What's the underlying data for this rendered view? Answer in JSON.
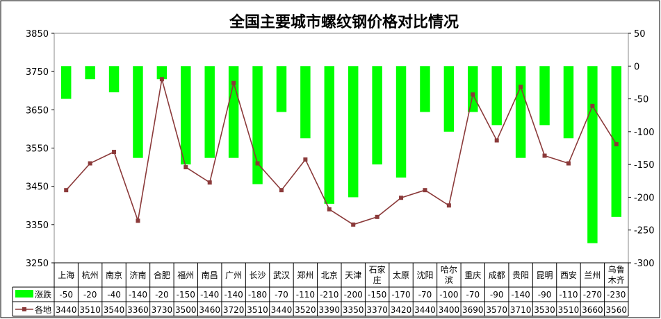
{
  "chart_data": {
    "type": "bar+line",
    "title": "全国主要城市螺纹钢价格对比情况",
    "categories": [
      [
        "上海"
      ],
      [
        "杭州"
      ],
      [
        "南京"
      ],
      [
        "济南"
      ],
      [
        "合肥"
      ],
      [
        "福州"
      ],
      [
        "南昌"
      ],
      [
        "广州"
      ],
      [
        "长沙"
      ],
      [
        "武汉"
      ],
      [
        "郑州"
      ],
      [
        "北京"
      ],
      [
        "天津"
      ],
      [
        "石家",
        "庄"
      ],
      [
        "太原"
      ],
      [
        "沈阳"
      ],
      [
        "哈尔",
        "滨"
      ],
      [
        "重庆"
      ],
      [
        "成都"
      ],
      [
        "贵阳"
      ],
      [
        "昆明"
      ],
      [
        "西安"
      ],
      [
        "兰州"
      ],
      [
        "乌鲁",
        "木齐"
      ]
    ],
    "series": [
      {
        "name": "涨跌",
        "kind": "bar",
        "axis": "right",
        "color": "#00ff00",
        "values": [
          -50,
          -20,
          -40,
          -140,
          -20,
          -150,
          -140,
          -140,
          -180,
          -70,
          -110,
          -210,
          -200,
          -150,
          -170,
          -70,
          -100,
          -70,
          -90,
          -140,
          -90,
          -110,
          -270,
          -230
        ]
      },
      {
        "name": "各地",
        "kind": "line",
        "axis": "left",
        "color": "#8b3a3a",
        "values": [
          3440,
          3510,
          3540,
          3360,
          3730,
          3500,
          3460,
          3720,
          3510,
          3440,
          3520,
          3390,
          3350,
          3370,
          3420,
          3440,
          3400,
          3690,
          3570,
          3710,
          3530,
          3510,
          3660,
          3560
        ]
      }
    ],
    "left_axis": {
      "min": 3250,
      "max": 3850,
      "ticks": [
        3250,
        3350,
        3450,
        3550,
        3650,
        3750,
        3850
      ]
    },
    "right_axis": {
      "min": -300,
      "max": 50,
      "ticks": [
        50,
        0,
        -50,
        -100,
        -150,
        -200,
        -250,
        -300
      ]
    },
    "grid": false,
    "legend": "data-table-bottom"
  }
}
